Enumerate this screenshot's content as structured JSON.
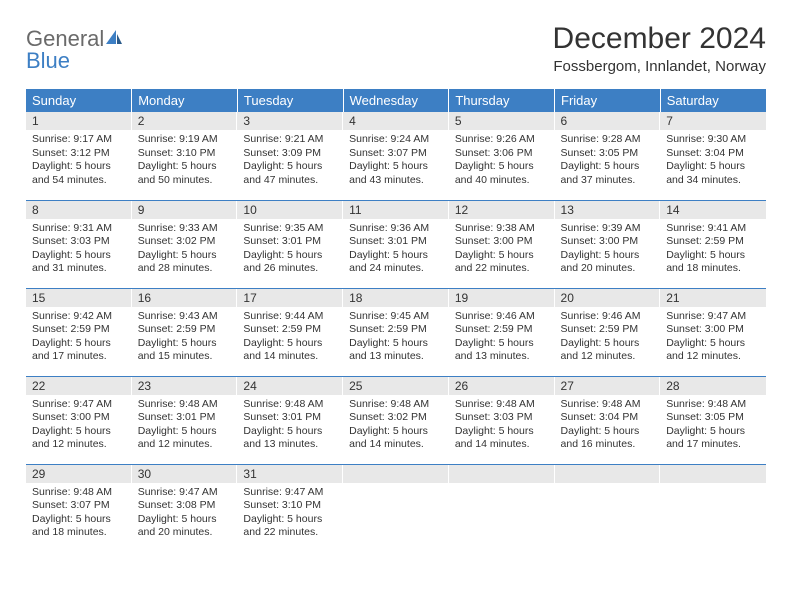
{
  "brand": {
    "name_part1": "General",
    "name_part2": "Blue"
  },
  "title": "December 2024",
  "location": "Fossbergom, Innlandet, Norway",
  "colors": {
    "header_bg": "#3d7fc4",
    "header_text": "#ffffff",
    "daynum_bg": "#e8e8e8",
    "rule": "#3d7fc4",
    "body_text": "#333333",
    "logo_gray": "#6a6a6a",
    "logo_blue": "#3d7fc4",
    "page_bg": "#ffffff"
  },
  "fontsizes": {
    "title": 30,
    "subtitle": 15,
    "weekday": 13,
    "daynum": 12,
    "body": 10.5,
    "logo": 22
  },
  "weekdays": [
    "Sunday",
    "Monday",
    "Tuesday",
    "Wednesday",
    "Thursday",
    "Friday",
    "Saturday"
  ],
  "weeks": [
    [
      {
        "n": "1",
        "sr": "Sunrise: 9:17 AM",
        "ss": "Sunset: 3:12 PM",
        "d1": "Daylight: 5 hours",
        "d2": "and 54 minutes."
      },
      {
        "n": "2",
        "sr": "Sunrise: 9:19 AM",
        "ss": "Sunset: 3:10 PM",
        "d1": "Daylight: 5 hours",
        "d2": "and 50 minutes."
      },
      {
        "n": "3",
        "sr": "Sunrise: 9:21 AM",
        "ss": "Sunset: 3:09 PM",
        "d1": "Daylight: 5 hours",
        "d2": "and 47 minutes."
      },
      {
        "n": "4",
        "sr": "Sunrise: 9:24 AM",
        "ss": "Sunset: 3:07 PM",
        "d1": "Daylight: 5 hours",
        "d2": "and 43 minutes."
      },
      {
        "n": "5",
        "sr": "Sunrise: 9:26 AM",
        "ss": "Sunset: 3:06 PM",
        "d1": "Daylight: 5 hours",
        "d2": "and 40 minutes."
      },
      {
        "n": "6",
        "sr": "Sunrise: 9:28 AM",
        "ss": "Sunset: 3:05 PM",
        "d1": "Daylight: 5 hours",
        "d2": "and 37 minutes."
      },
      {
        "n": "7",
        "sr": "Sunrise: 9:30 AM",
        "ss": "Sunset: 3:04 PM",
        "d1": "Daylight: 5 hours",
        "d2": "and 34 minutes."
      }
    ],
    [
      {
        "n": "8",
        "sr": "Sunrise: 9:31 AM",
        "ss": "Sunset: 3:03 PM",
        "d1": "Daylight: 5 hours",
        "d2": "and 31 minutes."
      },
      {
        "n": "9",
        "sr": "Sunrise: 9:33 AM",
        "ss": "Sunset: 3:02 PM",
        "d1": "Daylight: 5 hours",
        "d2": "and 28 minutes."
      },
      {
        "n": "10",
        "sr": "Sunrise: 9:35 AM",
        "ss": "Sunset: 3:01 PM",
        "d1": "Daylight: 5 hours",
        "d2": "and 26 minutes."
      },
      {
        "n": "11",
        "sr": "Sunrise: 9:36 AM",
        "ss": "Sunset: 3:01 PM",
        "d1": "Daylight: 5 hours",
        "d2": "and 24 minutes."
      },
      {
        "n": "12",
        "sr": "Sunrise: 9:38 AM",
        "ss": "Sunset: 3:00 PM",
        "d1": "Daylight: 5 hours",
        "d2": "and 22 minutes."
      },
      {
        "n": "13",
        "sr": "Sunrise: 9:39 AM",
        "ss": "Sunset: 3:00 PM",
        "d1": "Daylight: 5 hours",
        "d2": "and 20 minutes."
      },
      {
        "n": "14",
        "sr": "Sunrise: 9:41 AM",
        "ss": "Sunset: 2:59 PM",
        "d1": "Daylight: 5 hours",
        "d2": "and 18 minutes."
      }
    ],
    [
      {
        "n": "15",
        "sr": "Sunrise: 9:42 AM",
        "ss": "Sunset: 2:59 PM",
        "d1": "Daylight: 5 hours",
        "d2": "and 17 minutes."
      },
      {
        "n": "16",
        "sr": "Sunrise: 9:43 AM",
        "ss": "Sunset: 2:59 PM",
        "d1": "Daylight: 5 hours",
        "d2": "and 15 minutes."
      },
      {
        "n": "17",
        "sr": "Sunrise: 9:44 AM",
        "ss": "Sunset: 2:59 PM",
        "d1": "Daylight: 5 hours",
        "d2": "and 14 minutes."
      },
      {
        "n": "18",
        "sr": "Sunrise: 9:45 AM",
        "ss": "Sunset: 2:59 PM",
        "d1": "Daylight: 5 hours",
        "d2": "and 13 minutes."
      },
      {
        "n": "19",
        "sr": "Sunrise: 9:46 AM",
        "ss": "Sunset: 2:59 PM",
        "d1": "Daylight: 5 hours",
        "d2": "and 13 minutes."
      },
      {
        "n": "20",
        "sr": "Sunrise: 9:46 AM",
        "ss": "Sunset: 2:59 PM",
        "d1": "Daylight: 5 hours",
        "d2": "and 12 minutes."
      },
      {
        "n": "21",
        "sr": "Sunrise: 9:47 AM",
        "ss": "Sunset: 3:00 PM",
        "d1": "Daylight: 5 hours",
        "d2": "and 12 minutes."
      }
    ],
    [
      {
        "n": "22",
        "sr": "Sunrise: 9:47 AM",
        "ss": "Sunset: 3:00 PM",
        "d1": "Daylight: 5 hours",
        "d2": "and 12 minutes."
      },
      {
        "n": "23",
        "sr": "Sunrise: 9:48 AM",
        "ss": "Sunset: 3:01 PM",
        "d1": "Daylight: 5 hours",
        "d2": "and 12 minutes."
      },
      {
        "n": "24",
        "sr": "Sunrise: 9:48 AM",
        "ss": "Sunset: 3:01 PM",
        "d1": "Daylight: 5 hours",
        "d2": "and 13 minutes."
      },
      {
        "n": "25",
        "sr": "Sunrise: 9:48 AM",
        "ss": "Sunset: 3:02 PM",
        "d1": "Daylight: 5 hours",
        "d2": "and 14 minutes."
      },
      {
        "n": "26",
        "sr": "Sunrise: 9:48 AM",
        "ss": "Sunset: 3:03 PM",
        "d1": "Daylight: 5 hours",
        "d2": "and 14 minutes."
      },
      {
        "n": "27",
        "sr": "Sunrise: 9:48 AM",
        "ss": "Sunset: 3:04 PM",
        "d1": "Daylight: 5 hours",
        "d2": "and 16 minutes."
      },
      {
        "n": "28",
        "sr": "Sunrise: 9:48 AM",
        "ss": "Sunset: 3:05 PM",
        "d1": "Daylight: 5 hours",
        "d2": "and 17 minutes."
      }
    ],
    [
      {
        "n": "29",
        "sr": "Sunrise: 9:48 AM",
        "ss": "Sunset: 3:07 PM",
        "d1": "Daylight: 5 hours",
        "d2": "and 18 minutes."
      },
      {
        "n": "30",
        "sr": "Sunrise: 9:47 AM",
        "ss": "Sunset: 3:08 PM",
        "d1": "Daylight: 5 hours",
        "d2": "and 20 minutes."
      },
      {
        "n": "31",
        "sr": "Sunrise: 9:47 AM",
        "ss": "Sunset: 3:10 PM",
        "d1": "Daylight: 5 hours",
        "d2": "and 22 minutes."
      },
      null,
      null,
      null,
      null
    ]
  ]
}
